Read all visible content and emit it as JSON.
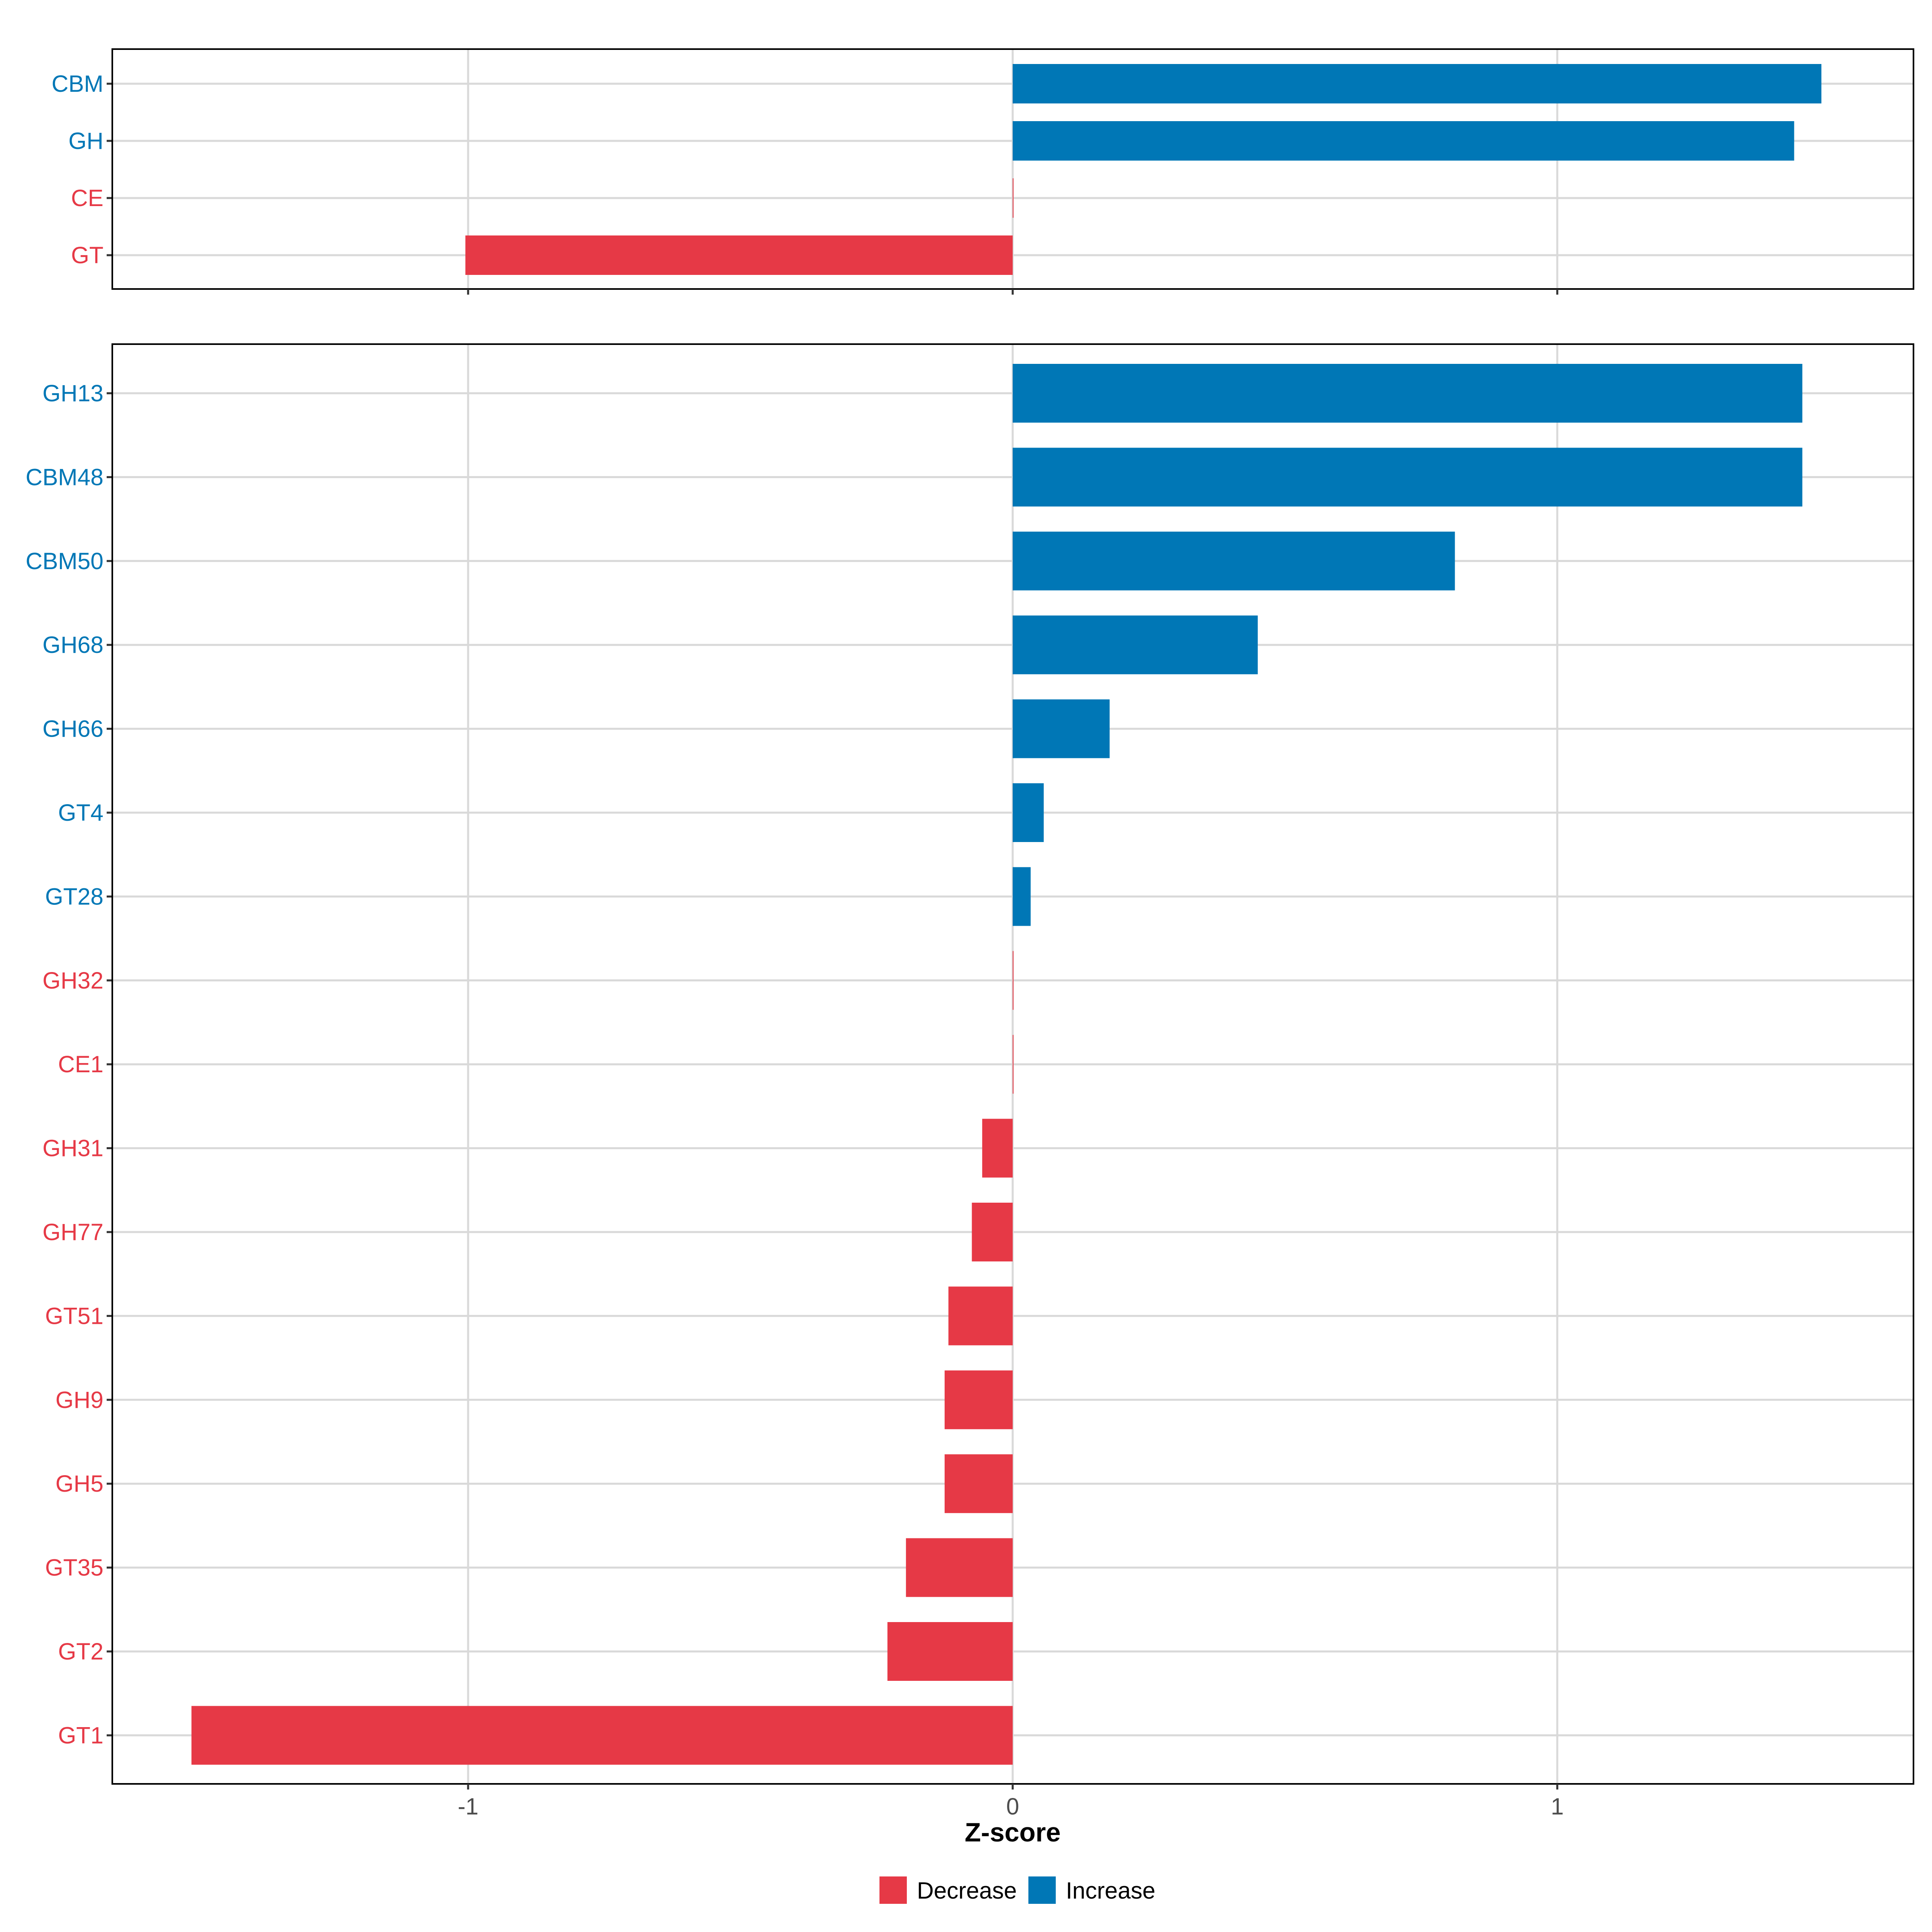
{
  "chart_data": {
    "type": "bar",
    "orientation": "horizontal",
    "xlabel": "Z-score",
    "xlim": [
      -1.66,
      1.66
    ],
    "x_ticks": [
      {
        "value": -1,
        "label": "-1"
      },
      {
        "value": 0,
        "label": "0"
      },
      {
        "value": 1,
        "label": "1"
      }
    ],
    "grid": true,
    "legend": {
      "placement": "bottom",
      "items": [
        {
          "label": "Decrease",
          "color": "#E63946"
        },
        {
          "label": "Increase",
          "color": "#0077B6"
        }
      ]
    },
    "colors": {
      "Decrease": "#E63946",
      "Increase": "#0077B6"
    },
    "panels": [
      {
        "categories": [
          "CBM",
          "GH",
          "CE",
          "GT"
        ],
        "values": [
          1.485,
          1.435,
          0.0,
          -1.005
        ],
        "groups": [
          "Increase",
          "Increase",
          "Decrease",
          "Decrease"
        ]
      },
      {
        "categories": [
          "GH13",
          "CBM48",
          "CBM50",
          "GH68",
          "GH66",
          "GT4",
          "GT28",
          "GH32",
          "CE1",
          "GH31",
          "GH77",
          "GT51",
          "GH9",
          "GH5",
          "GT35",
          "GT2",
          "GT1"
        ],
        "values": [
          1.45,
          1.45,
          0.812,
          0.45,
          0.178,
          0.057,
          0.033,
          0.0,
          0.0,
          -0.056,
          -0.075,
          -0.118,
          -0.125,
          -0.125,
          -0.196,
          -0.23,
          -1.508
        ],
        "groups": [
          "Increase",
          "Increase",
          "Increase",
          "Increase",
          "Increase",
          "Increase",
          "Increase",
          "Decrease",
          "Decrease",
          "Decrease",
          "Decrease",
          "Decrease",
          "Decrease",
          "Decrease",
          "Decrease",
          "Decrease",
          "Decrease"
        ]
      }
    ]
  }
}
